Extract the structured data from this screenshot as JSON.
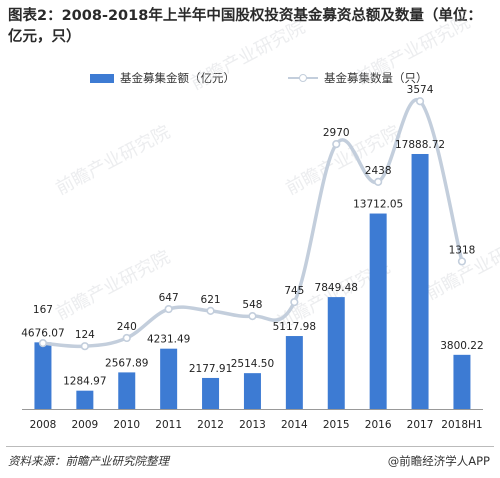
{
  "title": "图表2：2008-2018年上半年中国股权投资基金募资总额及数量（单位：亿元，只）",
  "chart_data": {
    "type": "bar",
    "categories": [
      "2008",
      "2009",
      "2010",
      "2011",
      "2012",
      "2013",
      "2014",
      "2015",
      "2016",
      "2017",
      "2018H1"
    ],
    "series": [
      {
        "name": "基金募集金额（亿元）",
        "type": "bar",
        "values": [
          4676.07,
          1284.97,
          2567.89,
          4231.49,
          2177.91,
          2514.5,
          5117.98,
          7849.48,
          13712.05,
          17888.72,
          3800.22
        ],
        "labels": [
          "4676.07",
          "1284.97",
          "2567.89",
          "4231.49",
          "2177.91",
          "2514.50",
          "5117.98",
          "7849.48",
          "13712.05",
          "17888.72",
          "3800.22"
        ],
        "color": "#3d7bd3"
      },
      {
        "name": "基金募集数量（只）",
        "type": "line",
        "values": [
          167,
          124,
          240,
          647,
          621,
          548,
          745,
          2970,
          2438,
          3574,
          1318
        ],
        "labels": [
          "167",
          "124",
          "240",
          "647",
          "621",
          "548",
          "745",
          "2970",
          "2438",
          "3574",
          "1318"
        ],
        "color": "#c3cedc"
      }
    ],
    "legend_position": "top",
    "grid": false,
    "watermark": "前瞻产业研究院"
  },
  "footer": {
    "source": "资料来源：前瞻产业研究院整理",
    "brand": "@前瞻经济学人APP"
  }
}
